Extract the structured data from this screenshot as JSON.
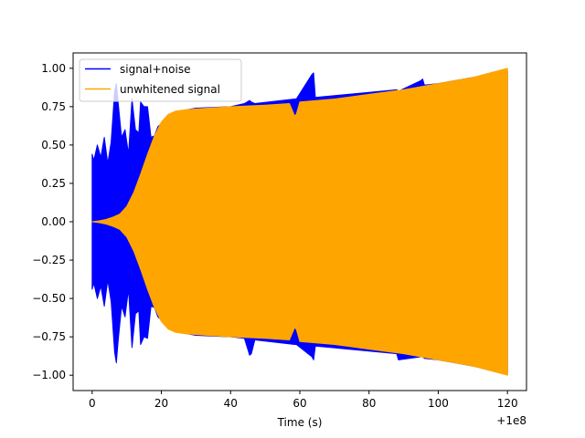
{
  "chart_data": {
    "type": "line",
    "title": "",
    "xlabel": "Time (s)",
    "ylabel": "",
    "x_offset_label": "+1e8",
    "xlim": [
      -5.5,
      125.5
    ],
    "ylim": [
      -1.1,
      1.1
    ],
    "x_ticks": [
      0,
      20,
      40,
      60,
      80,
      100,
      120
    ],
    "x_tick_labels": [
      "0",
      "20",
      "40",
      "60",
      "80",
      "100",
      "120"
    ],
    "y_ticks": [
      -1.0,
      -0.75,
      -0.5,
      -0.25,
      0.0,
      0.25,
      0.5,
      0.75,
      1.0
    ],
    "y_tick_labels": [
      "−1.00",
      "−0.75",
      "−0.50",
      "−0.25",
      "0.00",
      "0.25",
      "0.50",
      "0.75",
      "1.00"
    ],
    "grid": false,
    "legend": {
      "position": "top-left"
    },
    "series": [
      {
        "name": "signal+noise",
        "color": "#0000ff",
        "envelope": {
          "x": [
            0,
            0.5,
            1.5,
            2.5,
            3.5,
            4.5,
            5.5,
            6.5,
            7.0,
            7.5,
            8.5,
            9.5,
            10.5,
            11.5,
            12.5,
            13.5,
            14.0,
            15.0,
            16.0,
            17.0,
            18.0,
            19.0,
            21.0,
            25.0,
            30.0,
            40.0,
            44.0,
            45.5,
            46.0,
            47.0,
            58.5,
            59.0,
            63.5,
            64.0,
            64.5,
            88.0,
            88.5,
            95.0,
            95.5,
            96.0,
            100.0,
            110.0,
            120.0
          ],
          "upper": [
            0.44,
            0.4,
            0.5,
            0.42,
            0.55,
            0.38,
            0.52,
            0.85,
            0.9,
            0.78,
            0.55,
            0.6,
            0.44,
            0.8,
            0.6,
            0.58,
            0.78,
            0.75,
            0.75,
            0.55,
            0.56,
            0.62,
            0.66,
            0.72,
            0.74,
            0.75,
            0.77,
            0.79,
            0.78,
            0.77,
            0.8,
            0.8,
            0.96,
            0.97,
            0.81,
            0.86,
            0.85,
            0.92,
            0.93,
            0.89,
            0.9,
            0.94,
            0.98
          ],
          "lower": [
            -0.44,
            -0.4,
            -0.5,
            -0.42,
            -0.55,
            -0.38,
            -0.52,
            -0.85,
            -0.92,
            -0.78,
            -0.55,
            -0.62,
            -0.44,
            -0.82,
            -0.6,
            -0.58,
            -0.8,
            -0.75,
            -0.76,
            -0.55,
            -0.56,
            -0.62,
            -0.66,
            -0.72,
            -0.74,
            -0.75,
            -0.76,
            -0.87,
            -0.86,
            -0.77,
            -0.8,
            -0.8,
            -0.88,
            -0.9,
            -0.81,
            -0.86,
            -0.9,
            -0.88,
            -0.88,
            -0.89,
            -0.9,
            -0.94,
            -0.99
          ]
        }
      },
      {
        "name": "unwhitened signal",
        "color": "#ffa500",
        "envelope": {
          "x": [
            0,
            2,
            4,
            6,
            8,
            10,
            12,
            14,
            16,
            18,
            20,
            22,
            24,
            27,
            30,
            40,
            50,
            57,
            58.5,
            59,
            60,
            70,
            80,
            90,
            100,
            110,
            120
          ],
          "upper": [
            0.0,
            0.006,
            0.015,
            0.03,
            0.05,
            0.1,
            0.19,
            0.31,
            0.44,
            0.56,
            0.65,
            0.7,
            0.72,
            0.73,
            0.735,
            0.75,
            0.76,
            0.77,
            0.69,
            0.7,
            0.78,
            0.8,
            0.83,
            0.86,
            0.9,
            0.94,
            1.0
          ],
          "lower": [
            0.0,
            -0.006,
            -0.015,
            -0.03,
            -0.05,
            -0.1,
            -0.19,
            -0.31,
            -0.44,
            -0.56,
            -0.65,
            -0.7,
            -0.72,
            -0.73,
            -0.735,
            -0.75,
            -0.76,
            -0.77,
            -0.69,
            -0.7,
            -0.78,
            -0.8,
            -0.83,
            -0.86,
            -0.9,
            -0.94,
            -1.0
          ]
        }
      }
    ]
  }
}
